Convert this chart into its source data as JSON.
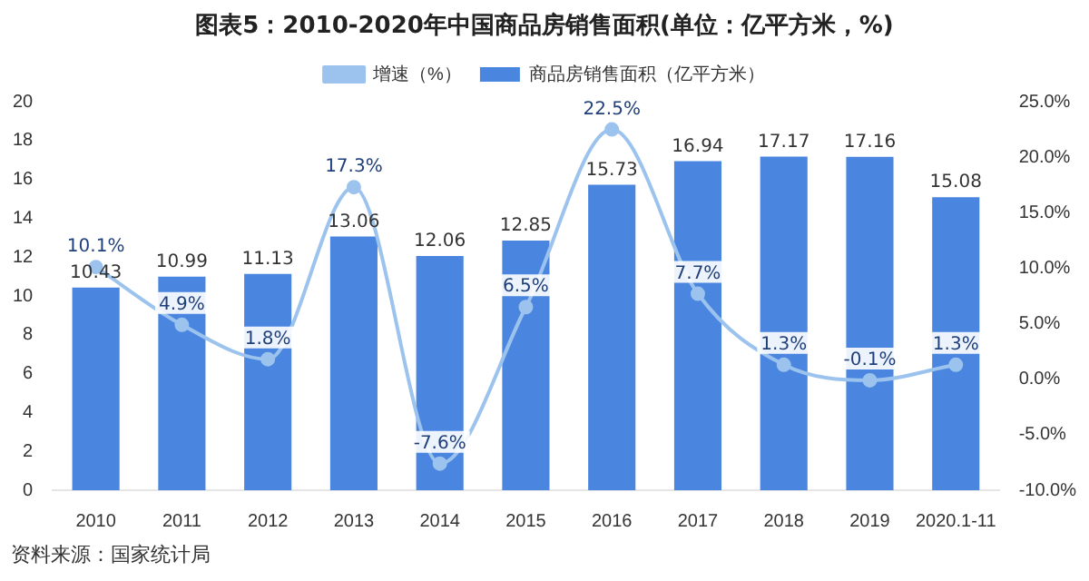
{
  "chart_data": {
    "type": "bar",
    "title": "图表5：2010-2020年中国商品房销售面积(单位：亿平方米，%)",
    "categories": [
      "2010",
      "2011",
      "2012",
      "2013",
      "2014",
      "2015",
      "2016",
      "2017",
      "2018",
      "2019",
      "2020.1-11"
    ],
    "series": [
      {
        "name": "商品房销售面积（亿平方米）",
        "color": "#4a86e0",
        "values": [
          10.43,
          10.99,
          11.13,
          13.06,
          12.06,
          12.85,
          15.73,
          16.94,
          17.17,
          17.16,
          15.08
        ]
      },
      {
        "name": "增速（%）",
        "type": "line",
        "axis": "y2",
        "color": "#9cc3ee",
        "values": [
          10.1,
          4.9,
          1.8,
          17.3,
          -7.6,
          6.5,
          22.5,
          7.7,
          1.3,
          -0.1,
          1.3
        ],
        "value_labels": [
          "10.1%",
          "4.9%",
          "1.8%",
          "17.3%",
          "-7.6%",
          "6.5%",
          "22.5%",
          "7.7%",
          "1.3%",
          "-0.1%",
          "1.3%"
        ]
      }
    ],
    "ylim": [
      0,
      20
    ],
    "yticks": [
      0,
      2,
      4,
      6,
      8,
      10,
      12,
      14,
      16,
      18,
      20
    ],
    "y2lim": [
      -10,
      25
    ],
    "y2ticks": [
      {
        "value": -10,
        "label": "-10.0%"
      },
      {
        "value": -5,
        "label": "-5.0%"
      },
      {
        "value": 0,
        "label": "0.0%"
      },
      {
        "value": 5,
        "label": "5.0%"
      },
      {
        "value": 10,
        "label": "10.0%"
      },
      {
        "value": 15,
        "label": "15.0%"
      },
      {
        "value": 20,
        "label": "20.0%"
      },
      {
        "value": 25,
        "label": "25.0%"
      }
    ],
    "data_labels": true,
    "grid": false,
    "legend": "top",
    "marker": "circle",
    "annotations": [
      "资料来源：国家统计局"
    ]
  }
}
